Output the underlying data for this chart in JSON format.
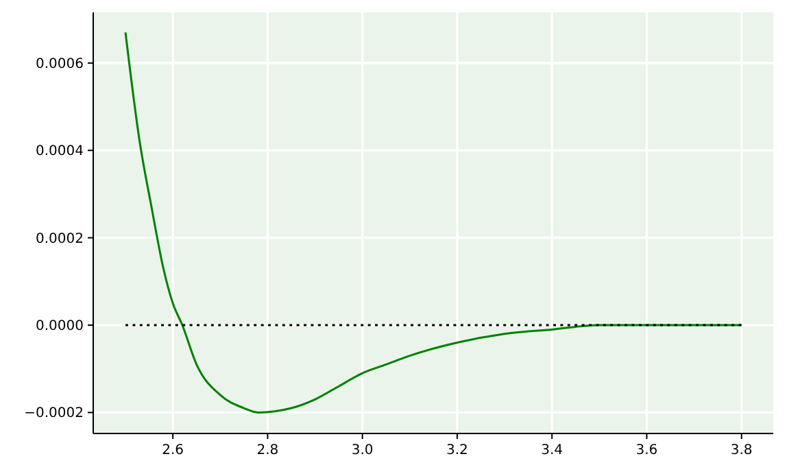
{
  "chart_data": {
    "type": "line",
    "xlim": [
      2.432,
      3.867
    ],
    "ylim": [
      -0.000248,
      0.000716
    ],
    "xticks": [
      {
        "value": 2.6,
        "label": "2.6"
      },
      {
        "value": 2.8,
        "label": "2.8"
      },
      {
        "value": 3.0,
        "label": "3.0"
      },
      {
        "value": 3.2,
        "label": "3.2"
      },
      {
        "value": 3.4,
        "label": "3.4"
      },
      {
        "value": 3.6,
        "label": "3.6"
      },
      {
        "value": 3.8,
        "label": "3.8"
      }
    ],
    "yticks": [
      {
        "value": -0.0002,
        "label": "−0.0002"
      },
      {
        "value": 0,
        "label": "0.0000"
      },
      {
        "value": 0.0002,
        "label": "0.0002"
      },
      {
        "value": 0.0004,
        "label": "0.0004"
      },
      {
        "value": 0.0006,
        "label": "0.0006"
      }
    ],
    "grid": true,
    "series": [
      {
        "color": "#008000",
        "line_style": "solid",
        "x": [
          2.5,
          2.53,
          2.555,
          2.58,
          2.6,
          2.62,
          2.65,
          2.7,
          2.75,
          2.78,
          2.85,
          2.9,
          2.95,
          3.0,
          3.05,
          3.1,
          3.2,
          3.3,
          3.4,
          3.5,
          3.6,
          3.7,
          3.8
        ],
        "values": [
          0.00067,
          0.00042,
          0.00027,
          0.00013,
          5e-05,
          0,
          -9e-05,
          -0.00016,
          -0.00019,
          -0.0002,
          -0.00019,
          -0.00017,
          -0.00014,
          -0.00011,
          -9e-05,
          -7e-05,
          -4e-05,
          -2e-05,
          -1e-05,
          0,
          0,
          0,
          0
        ]
      },
      {
        "color": "#000000",
        "line_style": "dotted",
        "x": [
          2.5,
          3.8
        ],
        "values": [
          0,
          0
        ]
      }
    ]
  }
}
